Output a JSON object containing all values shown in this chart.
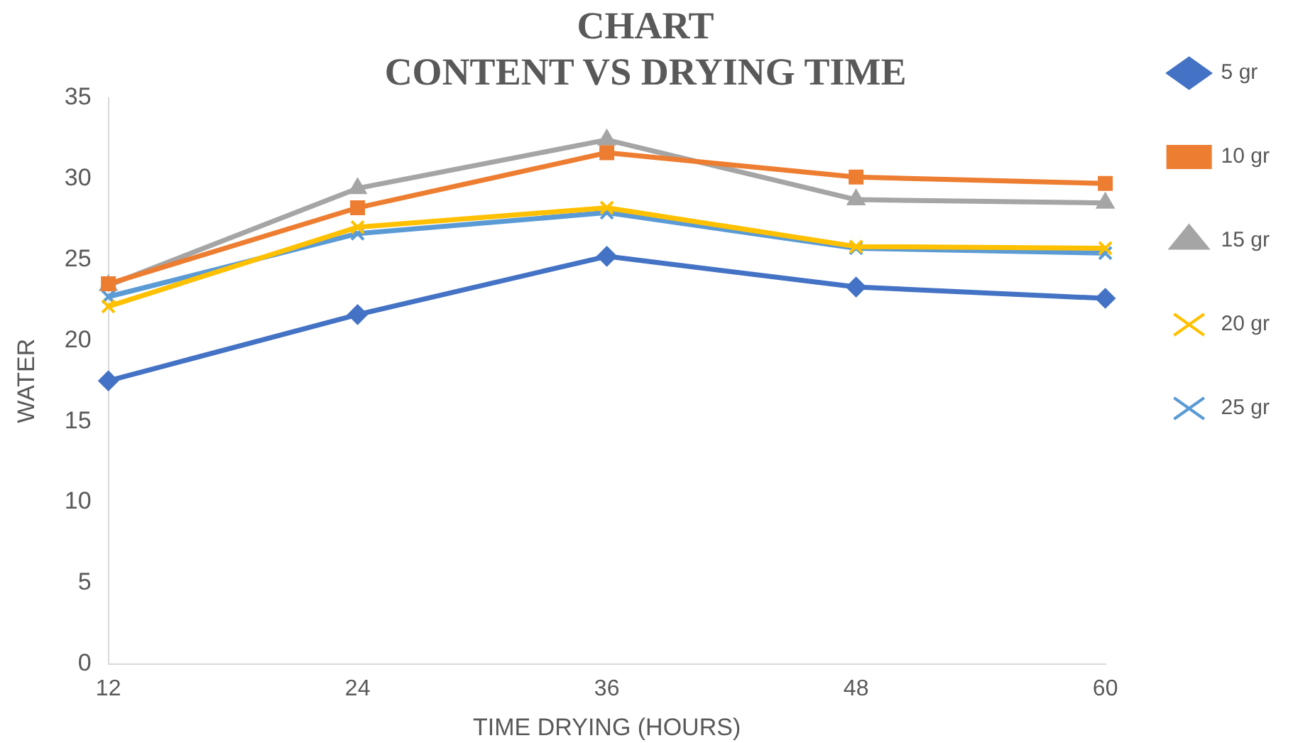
{
  "chart_data": {
    "type": "line",
    "title": [
      "CHART",
      "CONTENT VS DRYING TIME"
    ],
    "xlabel": "TIME DRYING (HOURS)",
    "ylabel": "WATER",
    "categories": [
      "12",
      "24",
      "36",
      "48",
      "60"
    ],
    "ylim": [
      0,
      35
    ],
    "yticks": [
      0,
      5,
      10,
      15,
      20,
      25,
      30,
      35
    ],
    "grid": false,
    "legend": "right",
    "line_style": "solid",
    "series": [
      {
        "name": "5 gr",
        "color": "#4472c4",
        "marker": "diamond",
        "values": [
          17.5,
          21.6,
          25.2,
          23.3,
          22.6
        ]
      },
      {
        "name": "10 gr",
        "color": "#ed7d31",
        "marker": "square",
        "values": [
          23.5,
          28.2,
          31.6,
          30.1,
          29.7
        ]
      },
      {
        "name": "15 gr",
        "color": "#a5a5a5",
        "marker": "triangle",
        "values": [
          23.4,
          29.4,
          32.4,
          28.7,
          28.5
        ]
      },
      {
        "name": "20 gr",
        "color": "#ffc000",
        "marker": "cross",
        "values": [
          22.1,
          27.0,
          28.2,
          25.8,
          25.7
        ]
      },
      {
        "name": "25 gr",
        "color": "#5b9bd5",
        "marker": "cross",
        "values": [
          22.7,
          26.6,
          27.9,
          25.7,
          25.4
        ]
      }
    ]
  }
}
